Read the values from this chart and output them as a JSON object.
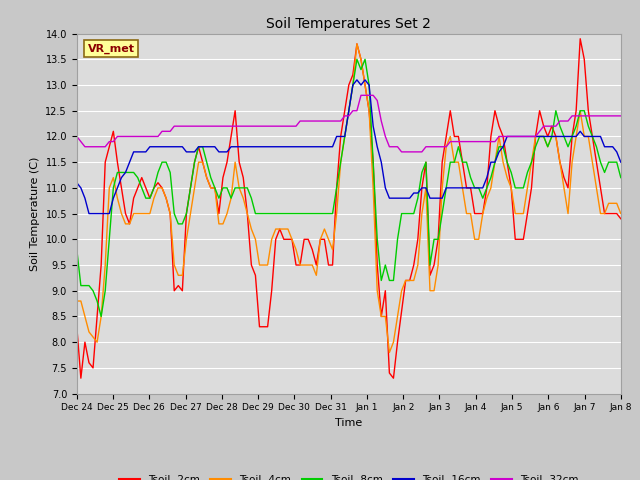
{
  "title": "Soil Temperatures Set 2",
  "xlabel": "Time",
  "ylabel": "Soil Temperature (C)",
  "ylim": [
    7.0,
    14.0
  ],
  "yticks": [
    7.0,
    7.5,
    8.0,
    8.5,
    9.0,
    9.5,
    10.0,
    10.5,
    11.0,
    11.5,
    12.0,
    12.5,
    13.0,
    13.5,
    14.0
  ],
  "xtick_labels": [
    "Dec 24",
    "Dec 25",
    "Dec 26",
    "Dec 27",
    "Dec 28",
    "Dec 29",
    "Dec 30",
    "Dec 31",
    "Jan 1",
    "Jan 2",
    "Jan 3",
    "Jan 4",
    "Jan 5",
    "Jan 6",
    "Jan 7",
    "Jan 8"
  ],
  "annotation_text": "VR_met",
  "annotation_color": "#8B0000",
  "annotation_bg": "#FFFF99",
  "annotation_border": "#8B6914",
  "fig_bg": "#C8C8C8",
  "plot_bg": "#DCDCDC",
  "grid_color": "white",
  "series": {
    "Tsoil -2cm": {
      "color": "#FF0000",
      "lw": 1.0,
      "y": [
        8.3,
        7.3,
        8.0,
        7.6,
        7.5,
        8.5,
        9.5,
        11.5,
        11.8,
        12.1,
        11.5,
        11.0,
        10.5,
        10.3,
        10.8,
        11.0,
        11.2,
        11.0,
        10.8,
        11.0,
        11.1,
        11.0,
        10.8,
        10.5,
        9.0,
        9.1,
        9.0,
        10.5,
        11.0,
        11.5,
        11.8,
        11.5,
        11.2,
        11.0,
        11.0,
        10.5,
        11.2,
        11.5,
        12.0,
        12.5,
        11.5,
        11.2,
        10.5,
        9.5,
        9.3,
        8.3,
        8.3,
        8.3,
        9.0,
        10.0,
        10.2,
        10.0,
        10.0,
        10.0,
        9.5,
        9.5,
        10.0,
        10.0,
        9.8,
        9.5,
        10.0,
        10.0,
        9.5,
        9.5,
        11.0,
        12.0,
        12.5,
        13.0,
        13.2,
        13.8,
        13.5,
        13.0,
        12.5,
        11.5,
        9.5,
        8.5,
        9.0,
        7.4,
        7.3,
        8.0,
        8.6,
        9.2,
        9.2,
        9.5,
        10.0,
        11.0,
        11.5,
        9.3,
        9.5,
        10.0,
        11.5,
        12.0,
        12.5,
        12.0,
        12.0,
        11.5,
        11.0,
        11.0,
        10.5,
        10.5,
        10.5,
        11.0,
        12.0,
        12.5,
        12.2,
        12.0,
        11.5,
        11.0,
        10.0,
        10.0,
        10.0,
        10.5,
        11.0,
        12.0,
        12.5,
        12.2,
        12.0,
        12.2,
        12.0,
        11.5,
        11.2,
        11.0,
        12.0,
        12.5,
        13.9,
        13.5,
        12.5,
        12.0,
        11.5,
        11.0,
        10.5,
        10.5,
        10.5,
        10.5,
        10.4
      ]
    },
    "Tsoil -4cm": {
      "color": "#FF8C00",
      "lw": 1.0,
      "y": [
        8.8,
        8.8,
        8.5,
        8.2,
        8.1,
        8.0,
        8.5,
        9.5,
        11.0,
        11.2,
        10.8,
        10.5,
        10.3,
        10.3,
        10.5,
        10.5,
        10.5,
        10.5,
        10.5,
        10.8,
        11.0,
        11.0,
        10.8,
        10.5,
        9.5,
        9.3,
        9.3,
        10.0,
        10.5,
        11.0,
        11.5,
        11.5,
        11.2,
        11.0,
        11.0,
        10.3,
        10.3,
        10.5,
        10.8,
        11.5,
        11.0,
        10.8,
        10.5,
        10.2,
        10.0,
        9.5,
        9.5,
        9.5,
        10.0,
        10.2,
        10.2,
        10.2,
        10.2,
        10.0,
        9.8,
        9.5,
        9.5,
        9.5,
        9.5,
        9.3,
        10.0,
        10.2,
        10.0,
        9.8,
        10.5,
        11.5,
        12.0,
        12.5,
        13.0,
        13.8,
        13.5,
        13.0,
        12.5,
        11.0,
        9.0,
        8.5,
        8.5,
        7.8,
        8.0,
        8.5,
        9.0,
        9.2,
        9.2,
        9.2,
        9.5,
        10.5,
        11.0,
        9.0,
        9.0,
        9.5,
        11.0,
        11.8,
        12.0,
        11.5,
        11.5,
        11.0,
        10.5,
        10.5,
        10.0,
        10.0,
        10.5,
        10.8,
        11.0,
        11.5,
        12.0,
        11.5,
        11.2,
        11.0,
        10.5,
        10.5,
        10.5,
        11.0,
        11.5,
        12.0,
        12.0,
        12.0,
        11.8,
        12.0,
        12.0,
        11.5,
        11.0,
        10.5,
        11.5,
        12.0,
        12.5,
        12.0,
        12.0,
        11.5,
        11.0,
        10.5,
        10.5,
        10.7,
        10.7,
        10.7,
        10.5
      ]
    },
    "Tsoil -8cm": {
      "color": "#00CC00",
      "lw": 1.0,
      "y": [
        9.8,
        9.1,
        9.1,
        9.1,
        9.0,
        8.8,
        8.5,
        9.0,
        10.0,
        11.0,
        11.3,
        11.3,
        11.3,
        11.3,
        11.3,
        11.2,
        11.0,
        10.8,
        10.8,
        11.0,
        11.3,
        11.5,
        11.5,
        11.3,
        10.5,
        10.3,
        10.3,
        10.5,
        11.0,
        11.5,
        11.8,
        11.8,
        11.5,
        11.2,
        11.0,
        10.8,
        11.0,
        11.0,
        10.8,
        11.0,
        11.0,
        11.0,
        11.0,
        10.8,
        10.5,
        10.5,
        10.5,
        10.5,
        10.5,
        10.5,
        10.5,
        10.5,
        10.5,
        10.5,
        10.5,
        10.5,
        10.5,
        10.5,
        10.5,
        10.5,
        10.5,
        10.5,
        10.5,
        10.5,
        11.0,
        11.5,
        12.0,
        12.5,
        13.0,
        13.5,
        13.3,
        13.5,
        13.0,
        11.5,
        10.0,
        9.2,
        9.5,
        9.2,
        9.2,
        10.0,
        10.5,
        10.5,
        10.5,
        10.5,
        10.8,
        11.3,
        11.5,
        9.5,
        10.0,
        10.0,
        10.5,
        11.0,
        11.5,
        11.5,
        11.8,
        11.5,
        11.5,
        11.2,
        11.0,
        11.0,
        10.8,
        11.0,
        11.2,
        11.5,
        11.8,
        11.8,
        11.5,
        11.3,
        11.0,
        11.0,
        11.0,
        11.3,
        11.5,
        11.8,
        12.0,
        12.0,
        11.8,
        12.0,
        12.5,
        12.2,
        12.0,
        11.8,
        12.0,
        12.2,
        12.5,
        12.5,
        12.2,
        12.0,
        11.8,
        11.5,
        11.3,
        11.5,
        11.5,
        11.5,
        11.2
      ]
    },
    "Tsoil -16cm": {
      "color": "#0000CC",
      "lw": 1.0,
      "y": [
        11.1,
        11.0,
        10.8,
        10.5,
        10.5,
        10.5,
        10.5,
        10.5,
        10.5,
        10.8,
        11.0,
        11.2,
        11.3,
        11.5,
        11.7,
        11.7,
        11.7,
        11.7,
        11.8,
        11.8,
        11.8,
        11.8,
        11.8,
        11.8,
        11.8,
        11.8,
        11.8,
        11.7,
        11.7,
        11.7,
        11.8,
        11.8,
        11.8,
        11.8,
        11.8,
        11.7,
        11.7,
        11.7,
        11.8,
        11.8,
        11.8,
        11.8,
        11.8,
        11.8,
        11.8,
        11.8,
        11.8,
        11.8,
        11.8,
        11.8,
        11.8,
        11.8,
        11.8,
        11.8,
        11.8,
        11.8,
        11.8,
        11.8,
        11.8,
        11.8,
        11.8,
        11.8,
        11.8,
        11.8,
        12.0,
        12.0,
        12.0,
        12.5,
        13.0,
        13.1,
        13.0,
        13.1,
        13.0,
        12.2,
        11.8,
        11.5,
        11.0,
        10.8,
        10.8,
        10.8,
        10.8,
        10.8,
        10.8,
        10.9,
        10.9,
        11.0,
        11.0,
        10.8,
        10.8,
        10.8,
        10.8,
        11.0,
        11.0,
        11.0,
        11.0,
        11.0,
        11.0,
        11.0,
        11.0,
        11.0,
        11.0,
        11.2,
        11.5,
        11.5,
        11.7,
        11.8,
        12.0,
        12.0,
        12.0,
        12.0,
        12.0,
        12.0,
        12.0,
        12.0,
        12.0,
        12.0,
        12.0,
        12.0,
        12.0,
        12.0,
        12.0,
        12.0,
        12.0,
        12.0,
        12.1,
        12.0,
        12.0,
        12.0,
        12.0,
        12.0,
        11.8,
        11.8,
        11.8,
        11.7,
        11.5
      ]
    },
    "Tsoil -32cm": {
      "color": "#CC00CC",
      "lw": 1.0,
      "y": [
        12.0,
        11.9,
        11.8,
        11.8,
        11.8,
        11.8,
        11.8,
        11.8,
        11.9,
        11.9,
        12.0,
        12.0,
        12.0,
        12.0,
        12.0,
        12.0,
        12.0,
        12.0,
        12.0,
        12.0,
        12.0,
        12.1,
        12.1,
        12.1,
        12.2,
        12.2,
        12.2,
        12.2,
        12.2,
        12.2,
        12.2,
        12.2,
        12.2,
        12.2,
        12.2,
        12.2,
        12.2,
        12.2,
        12.2,
        12.2,
        12.2,
        12.2,
        12.2,
        12.2,
        12.2,
        12.2,
        12.2,
        12.2,
        12.2,
        12.2,
        12.2,
        12.2,
        12.2,
        12.2,
        12.2,
        12.3,
        12.3,
        12.3,
        12.3,
        12.3,
        12.3,
        12.3,
        12.3,
        12.3,
        12.3,
        12.3,
        12.4,
        12.4,
        12.5,
        12.5,
        12.8,
        12.8,
        12.8,
        12.8,
        12.7,
        12.3,
        12.0,
        11.8,
        11.8,
        11.8,
        11.7,
        11.7,
        11.7,
        11.7,
        11.7,
        11.7,
        11.8,
        11.8,
        11.8,
        11.8,
        11.8,
        11.8,
        11.9,
        11.9,
        11.9,
        11.9,
        11.9,
        11.9,
        11.9,
        11.9,
        11.9,
        11.9,
        11.9,
        11.9,
        12.0,
        12.0,
        12.0,
        12.0,
        12.0,
        12.0,
        12.0,
        12.0,
        12.0,
        12.0,
        12.1,
        12.2,
        12.2,
        12.2,
        12.2,
        12.3,
        12.3,
        12.3,
        12.4,
        12.4,
        12.4,
        12.4,
        12.4,
        12.4,
        12.4,
        12.4,
        12.4,
        12.4,
        12.4,
        12.4,
        12.4
      ]
    }
  },
  "n_points": 135,
  "legend_labels": [
    "Tsoil -2cm",
    "Tsoil -4cm",
    "Tsoil -8cm",
    "Tsoil -16cm",
    "Tsoil -32cm"
  ],
  "legend_colors": [
    "#FF0000",
    "#FF8C00",
    "#00CC00",
    "#0000CC",
    "#CC00CC"
  ]
}
